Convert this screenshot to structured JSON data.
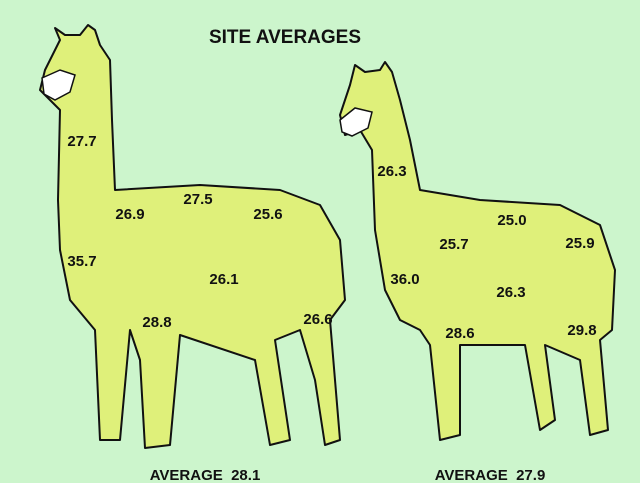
{
  "title": "SITE AVERAGES",
  "animals": [
    {
      "sites": [
        "27.7",
        "27.5",
        "26.9",
        "25.6",
        "35.7",
        "26.1",
        "28.8",
        "26.6"
      ],
      "average": "AVERAGE  28.1"
    },
    {
      "sites": [
        "26.3",
        "25.0",
        "25.7",
        "25.9",
        "36.0",
        "26.3",
        "28.6",
        "29.8"
      ],
      "average": "AVERAGE  27.9"
    }
  ]
}
